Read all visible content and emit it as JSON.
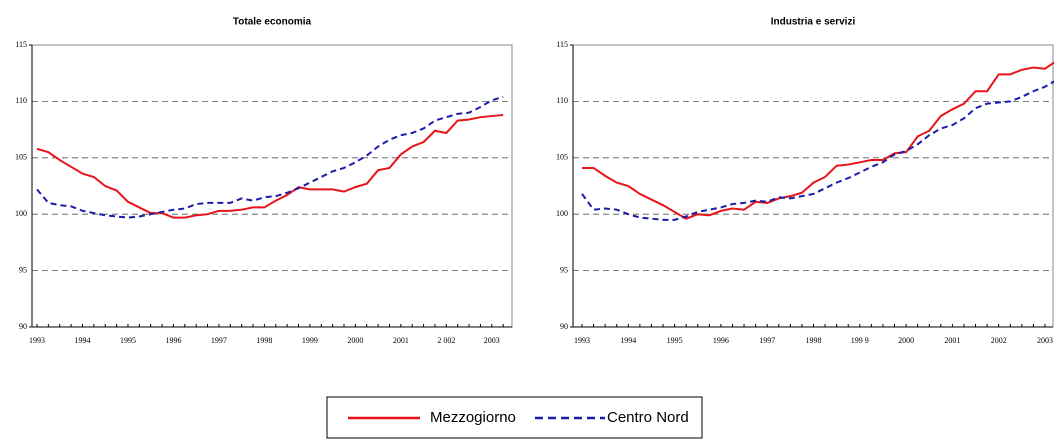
{
  "chart_data": [
    {
      "type": "line",
      "title": "Totale economia",
      "categories": [
        "1993",
        null,
        null,
        null,
        "1994",
        null,
        null,
        null,
        "1995",
        null,
        null,
        null,
        "1996",
        null,
        null,
        null,
        "1997",
        null,
        null,
        null,
        "1998",
        null,
        null,
        null,
        "1999",
        null,
        null,
        null,
        "2000",
        null,
        null,
        null,
        "2001",
        null,
        null,
        null,
        "2 002",
        null,
        null,
        null,
        "2003",
        null
      ],
      "series": [
        {
          "name": "Mezzogiorno",
          "color": "#e8141a",
          "dash": false,
          "values": [
            105.8,
            105.5,
            104.8,
            104.2,
            103.6,
            103.3,
            102.5,
            102.1,
            101.1,
            100.6,
            100.1,
            100.1,
            99.7,
            99.7,
            99.9,
            100.0,
            100.3,
            100.3,
            100.4,
            100.6,
            100.6,
            101.2,
            101.7,
            102.4,
            102.2,
            102.2,
            102.2,
            102.0,
            102.4,
            102.7,
            103.9,
            104.1,
            105.3,
            106.0,
            106.4,
            107.4,
            107.2,
            108.3,
            108.4,
            108.6,
            108.7,
            108.8
          ]
        },
        {
          "name": "Centro Nord",
          "color": "#1c1ca8",
          "dash": true,
          "values": [
            102.2,
            101.0,
            100.8,
            100.7,
            100.3,
            100.1,
            99.9,
            99.8,
            99.7,
            99.8,
            100.0,
            100.2,
            100.4,
            100.5,
            100.9,
            101.0,
            101.0,
            101.0,
            101.4,
            101.2,
            101.5,
            101.6,
            101.9,
            102.3,
            102.8,
            103.3,
            103.8,
            104.1,
            104.6,
            105.2,
            106.0,
            106.6,
            107.0,
            107.2,
            107.6,
            108.3,
            108.6,
            108.9,
            109.0,
            109.5,
            110.1,
            110.4
          ]
        }
      ],
      "ylim": [
        90,
        115
      ],
      "yticks": [
        90,
        95,
        100,
        105,
        110,
        115
      ],
      "grid": true
    },
    {
      "type": "line",
      "title": "Industria e servizi",
      "categories": [
        "1993",
        null,
        null,
        null,
        "1994",
        null,
        null,
        null,
        "1995",
        null,
        null,
        null,
        "1996",
        null,
        null,
        null,
        "1997",
        null,
        null,
        null,
        "1998",
        null,
        null,
        null,
        "199 9",
        null,
        null,
        null,
        "2000",
        null,
        null,
        null,
        "2001",
        null,
        null,
        null,
        "2002",
        null,
        null,
        null,
        "2003",
        null
      ],
      "series": [
        {
          "color": "#e8141a",
          "dash": false,
          "values": [
            104.1,
            104.1,
            103.4,
            102.8,
            102.5,
            101.8,
            101.3,
            100.8,
            100.2,
            99.6,
            100.0,
            99.9,
            100.3,
            100.5,
            100.4,
            101.1,
            101.0,
            101.4,
            101.6,
            101.9,
            102.8,
            103.3,
            104.3,
            104.4,
            104.6,
            104.8,
            104.8,
            105.4,
            105.5,
            106.9,
            107.4,
            108.7,
            109.3,
            109.8,
            110.9,
            110.9,
            112.4,
            112.4,
            112.8,
            113.0,
            112.9,
            113.6
          ]
        },
        {
          "color": "#1c1ca8",
          "dash": true,
          "values": [
            101.8,
            100.4,
            100.5,
            100.4,
            100.0,
            99.7,
            99.6,
            99.5,
            99.5,
            99.8,
            100.2,
            100.4,
            100.6,
            100.9,
            101.0,
            101.2,
            101.1,
            101.5,
            101.4,
            101.6,
            101.8,
            102.3,
            102.8,
            103.2,
            103.7,
            104.2,
            104.6,
            105.3,
            105.6,
            106.2,
            107.0,
            107.6,
            107.9,
            108.5,
            109.4,
            109.8,
            109.9,
            110.0,
            110.4,
            110.9,
            111.3,
            111.9
          ]
        }
      ],
      "ylim": [
        90,
        115
      ],
      "yticks": [
        90,
        95,
        100,
        105,
        110,
        115
      ],
      "grid": true
    }
  ]
}
